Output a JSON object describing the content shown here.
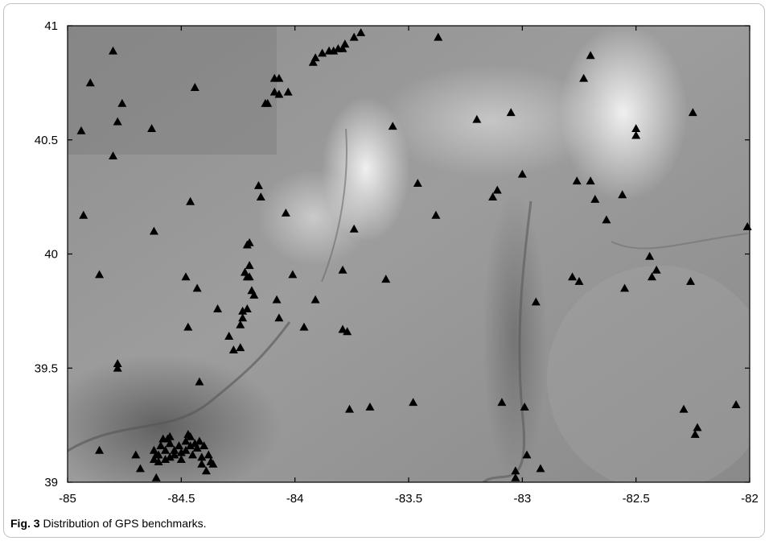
{
  "caption": {
    "label": "Fig. 3",
    "text": "Distribution of GPS benchmarks."
  },
  "colors": {
    "marker": "#000000",
    "axis": "#000000",
    "frame": "#bcc3c9"
  },
  "chart_data": {
    "type": "scatter",
    "title": "",
    "xlabel": "",
    "ylabel": "",
    "xlim": [
      -85,
      -82
    ],
    "ylim": [
      39,
      41
    ],
    "x_ticks": [
      -85,
      -84.5,
      -84,
      -83.5,
      -83,
      -82.5,
      -82
    ],
    "x_tick_labels": [
      "-85",
      "-84.5",
      "-84",
      "-83.5",
      "-83",
      "-82.5",
      "-82"
    ],
    "y_ticks": [
      39,
      39.5,
      40,
      40.5,
      41
    ],
    "y_tick_labels": [
      "39",
      "39.5",
      "40",
      "40.5",
      "41"
    ],
    "grid": false,
    "legend": "none",
    "background": "shaded relief elevation map (grayscale)",
    "marker": "triangle",
    "points": [
      [
        -84.8,
        40.89
      ],
      [
        -84.9,
        40.75
      ],
      [
        -84.94,
        40.54
      ],
      [
        -84.76,
        40.66
      ],
      [
        -84.78,
        40.58
      ],
      [
        -84.8,
        40.43
      ],
      [
        -84.63,
        40.55
      ],
      [
        -84.44,
        40.73
      ],
      [
        -84.93,
        40.17
      ],
      [
        -84.62,
        40.1
      ],
      [
        -84.46,
        40.23
      ],
      [
        -84.86,
        39.91
      ],
      [
        -84.48,
        39.9
      ],
      [
        -84.43,
        39.85
      ],
      [
        -84.47,
        39.68
      ],
      [
        -84.78,
        39.52
      ],
      [
        -84.78,
        39.5
      ],
      [
        -84.42,
        39.44
      ],
      [
        -84.34,
        39.76
      ],
      [
        -84.29,
        39.64
      ],
      [
        -84.27,
        39.58
      ],
      [
        -84.24,
        39.59
      ],
      [
        -84.24,
        39.69
      ],
      [
        -84.23,
        39.72
      ],
      [
        -84.23,
        39.75
      ],
      [
        -84.21,
        39.76
      ],
      [
        -84.22,
        39.92
      ],
      [
        -84.21,
        39.9
      ],
      [
        -84.2,
        39.9
      ],
      [
        -84.2,
        39.95
      ],
      [
        -84.21,
        40.04
      ],
      [
        -84.2,
        40.05
      ],
      [
        -84.19,
        39.84
      ],
      [
        -84.18,
        39.82
      ],
      [
        -84.16,
        40.3
      ],
      [
        -84.15,
        40.25
      ],
      [
        -84.13,
        40.66
      ],
      [
        -84.12,
        40.66
      ],
      [
        -84.09,
        40.71
      ],
      [
        -84.07,
        40.7
      ],
      [
        -84.09,
        40.77
      ],
      [
        -84.07,
        40.77
      ],
      [
        -84.03,
        40.71
      ],
      [
        -84.08,
        39.8
      ],
      [
        -84.07,
        39.72
      ],
      [
        -84.04,
        40.18
      ],
      [
        -84.01,
        39.91
      ],
      [
        -83.96,
        39.68
      ],
      [
        -83.91,
        39.8
      ],
      [
        -83.92,
        40.84
      ],
      [
        -83.91,
        40.86
      ],
      [
        -83.88,
        40.88
      ],
      [
        -83.85,
        40.89
      ],
      [
        -83.83,
        40.89
      ],
      [
        -83.81,
        40.9
      ],
      [
        -83.79,
        40.9
      ],
      [
        -83.78,
        40.92
      ],
      [
        -83.74,
        40.95
      ],
      [
        -83.71,
        40.97
      ],
      [
        -83.79,
        39.67
      ],
      [
        -83.77,
        39.66
      ],
      [
        -83.76,
        39.32
      ],
      [
        -83.74,
        40.11
      ],
      [
        -83.79,
        39.93
      ],
      [
        -83.67,
        39.33
      ],
      [
        -83.6,
        39.89
      ],
      [
        -83.57,
        40.56
      ],
      [
        -83.46,
        40.31
      ],
      [
        -83.48,
        39.35
      ],
      [
        -83.37,
        40.95
      ],
      [
        -83.38,
        40.17
      ],
      [
        -83.2,
        40.59
      ],
      [
        -83.13,
        40.25
      ],
      [
        -83.11,
        40.28
      ],
      [
        -83.09,
        39.35
      ],
      [
        -83.05,
        40.62
      ],
      [
        -83.0,
        40.35
      ],
      [
        -82.99,
        39.33
      ],
      [
        -82.98,
        39.12
      ],
      [
        -83.03,
        39.05
      ],
      [
        -83.03,
        39.02
      ],
      [
        -82.92,
        39.06
      ],
      [
        -82.94,
        39.79
      ],
      [
        -82.78,
        39.9
      ],
      [
        -82.75,
        39.88
      ],
      [
        -82.76,
        40.32
      ],
      [
        -82.7,
        40.32
      ],
      [
        -82.68,
        40.24
      ],
      [
        -82.63,
        40.15
      ],
      [
        -82.56,
        40.26
      ],
      [
        -82.7,
        40.87
      ],
      [
        -82.73,
        40.77
      ],
      [
        -82.5,
        40.55
      ],
      [
        -82.5,
        40.52
      ],
      [
        -82.55,
        39.85
      ],
      [
        -82.44,
        39.99
      ],
      [
        -82.43,
        39.9
      ],
      [
        -82.41,
        39.93
      ],
      [
        -82.25,
        40.62
      ],
      [
        -82.26,
        39.88
      ],
      [
        -82.29,
        39.32
      ],
      [
        -82.23,
        39.24
      ],
      [
        -82.24,
        39.21
      ],
      [
        -82.06,
        39.34
      ],
      [
        -82.01,
        40.12
      ],
      [
        -84.86,
        39.14
      ],
      [
        -84.7,
        39.12
      ],
      [
        -84.68,
        39.06
      ],
      [
        -84.61,
        39.02
      ],
      [
        -84.6,
        39.09
      ],
      [
        -84.62,
        39.14
      ],
      [
        -84.62,
        39.1
      ],
      [
        -84.61,
        39.12
      ],
      [
        -84.59,
        39.16
      ],
      [
        -84.58,
        39.19
      ],
      [
        -84.57,
        39.14
      ],
      [
        -84.57,
        39.1
      ],
      [
        -84.56,
        39.19
      ],
      [
        -84.55,
        39.2
      ],
      [
        -84.55,
        39.17
      ],
      [
        -84.55,
        39.11
      ],
      [
        -84.53,
        39.14
      ],
      [
        -84.53,
        39.12
      ],
      [
        -84.51,
        39.16
      ],
      [
        -84.5,
        39.13
      ],
      [
        -84.5,
        39.1
      ],
      [
        -84.48,
        39.18
      ],
      [
        -84.47,
        39.21
      ],
      [
        -84.46,
        39.2
      ],
      [
        -84.46,
        39.16
      ],
      [
        -84.45,
        39.12
      ],
      [
        -84.44,
        39.17
      ],
      [
        -84.43,
        39.15
      ],
      [
        -84.42,
        39.18
      ],
      [
        -84.41,
        39.11
      ],
      [
        -84.41,
        39.08
      ],
      [
        -84.4,
        39.16
      ],
      [
        -84.38,
        39.12
      ],
      [
        -84.37,
        39.09
      ],
      [
        -84.36,
        39.08
      ],
      [
        -84.39,
        39.05
      ],
      [
        -84.48,
        39.14
      ],
      [
        -84.6,
        39.12
      ]
    ]
  }
}
